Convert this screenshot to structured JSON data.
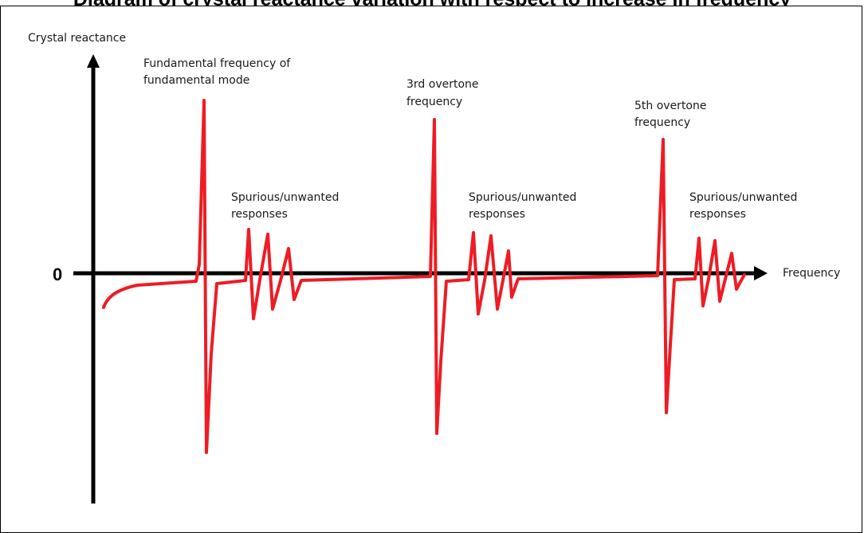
{
  "title": "Diagram of crystal reactance variation with respect to increase in frequency",
  "y_axis_label": "Crystal reactance",
  "x_axis_label": "Frequency",
  "origin_label": "0",
  "curve_color": "#ee1c24",
  "axis_color": "#000000",
  "annotations": {
    "fundamental": [
      "Fundamental frequency of",
      "fundamental mode"
    ],
    "spurious_1": [
      "Spurious/unwanted",
      "responses"
    ],
    "third": [
      "3rd overtone",
      "frequency"
    ],
    "spurious_2": [
      "Spurious/unwanted",
      "responses"
    ],
    "fifth": [
      "5th overtone",
      "frequency"
    ],
    "spurious_3": [
      "Spurious/unwanted",
      "responses"
    ]
  }
}
